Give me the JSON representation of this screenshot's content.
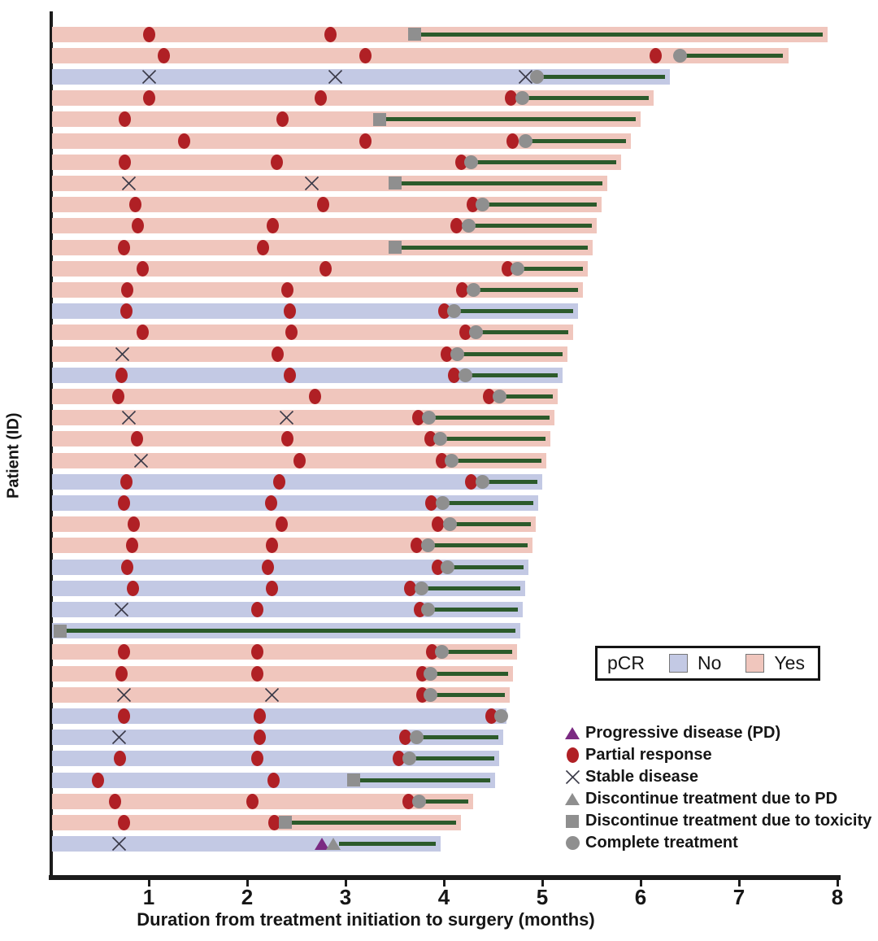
{
  "y_axis": {
    "label": "Patient (ID)"
  },
  "x_axis": {
    "label": "Duration from treatment initiation to surgery (months)",
    "ticks": [
      1,
      2,
      3,
      4,
      5,
      6,
      7,
      8
    ],
    "range": [
      0,
      8.4
    ]
  },
  "colors": {
    "pcr_yes": "#f0c6bd",
    "pcr_no": "#c3c9e4",
    "surgery_line": "#2c5a2b",
    "partial_response": "#b02025",
    "progressive_disease": "#7b2a82",
    "discontinue_gray": "#8f8f8f",
    "stable_x": "#3a3a48",
    "axis": "#1c1c1c"
  },
  "pcr_legend": {
    "title": "pCR",
    "items": [
      {
        "label": "No",
        "color_key": "pcr_no"
      },
      {
        "label": "Yes",
        "color_key": "pcr_yes"
      }
    ]
  },
  "marker_legend": [
    {
      "marker": "pd",
      "label": "Progressive disease (PD)"
    },
    {
      "marker": "pr",
      "label": "Partial response"
    },
    {
      "marker": "sd",
      "label": "Stable disease"
    },
    {
      "marker": "dpd",
      "label": "Discontinue treatment due to PD"
    },
    {
      "marker": "tox",
      "label": "Discontinue treatment due to toxicity"
    },
    {
      "marker": "ct",
      "label": "Complete treatment"
    }
  ],
  "chart_data": {
    "type": "swimmer-bar",
    "x_unit": "months",
    "xlim": [
      0,
      8
    ],
    "marker_codes": {
      "pr": "partial response (red circle)",
      "sd": "stable disease (x)",
      "pd": "progressive disease (purple triangle)",
      "ct": "complete treatment (gray circle)",
      "tox": "discontinue treatment due to toxicity (gray square)",
      "dpd": "discontinue treatment due to PD (gray triangle)"
    },
    "patients": [
      {
        "pcr": "Yes",
        "surgery": 7.9,
        "eot": {
          "t": 3.7,
          "marker": "tox"
        },
        "responses": [
          {
            "t": 1.0,
            "marker": "pr"
          },
          {
            "t": 2.85,
            "marker": "pr"
          }
        ]
      },
      {
        "pcr": "Yes",
        "surgery": 7.5,
        "eot": {
          "t": 6.4,
          "marker": "ct"
        },
        "responses": [
          {
            "t": 1.15,
            "marker": "pr"
          },
          {
            "t": 3.2,
            "marker": "pr"
          },
          {
            "t": 6.15,
            "marker": "pr"
          }
        ]
      },
      {
        "pcr": "No",
        "surgery": 6.3,
        "eot": {
          "t": 4.95,
          "marker": "ct"
        },
        "responses": [
          {
            "t": 1.0,
            "marker": "sd"
          },
          {
            "t": 2.9,
            "marker": "sd"
          },
          {
            "t": 4.83,
            "marker": "sd"
          }
        ]
      },
      {
        "pcr": "Yes",
        "surgery": 6.13,
        "eot": {
          "t": 4.8,
          "marker": "ct"
        },
        "responses": [
          {
            "t": 1.0,
            "marker": "pr"
          },
          {
            "t": 2.75,
            "marker": "pr"
          },
          {
            "t": 4.68,
            "marker": "pr"
          }
        ]
      },
      {
        "pcr": "Yes",
        "surgery": 6.0,
        "eot": {
          "t": 3.35,
          "marker": "tox"
        },
        "responses": [
          {
            "t": 0.76,
            "marker": "pr"
          },
          {
            "t": 2.36,
            "marker": "pr"
          }
        ]
      },
      {
        "pcr": "Yes",
        "surgery": 5.9,
        "eot": {
          "t": 4.83,
          "marker": "ct"
        },
        "responses": [
          {
            "t": 1.36,
            "marker": "pr"
          },
          {
            "t": 3.2,
            "marker": "pr"
          },
          {
            "t": 4.7,
            "marker": "pr"
          }
        ]
      },
      {
        "pcr": "Yes",
        "surgery": 5.8,
        "eot": {
          "t": 4.28,
          "marker": "ct"
        },
        "responses": [
          {
            "t": 0.76,
            "marker": "pr"
          },
          {
            "t": 2.3,
            "marker": "pr"
          },
          {
            "t": 4.18,
            "marker": "pr"
          }
        ]
      },
      {
        "pcr": "Yes",
        "surgery": 5.66,
        "eot": {
          "t": 3.5,
          "marker": "tox"
        },
        "responses": [
          {
            "t": 0.8,
            "marker": "sd"
          },
          {
            "t": 2.66,
            "marker": "sd"
          }
        ]
      },
      {
        "pcr": "Yes",
        "surgery": 5.6,
        "eot": {
          "t": 4.39,
          "marker": "ct"
        },
        "responses": [
          {
            "t": 0.86,
            "marker": "pr"
          },
          {
            "t": 2.77,
            "marker": "pr"
          },
          {
            "t": 4.29,
            "marker": "pr"
          }
        ]
      },
      {
        "pcr": "Yes",
        "surgery": 5.55,
        "eot": {
          "t": 4.25,
          "marker": "ct"
        },
        "responses": [
          {
            "t": 0.89,
            "marker": "pr"
          },
          {
            "t": 2.26,
            "marker": "pr"
          },
          {
            "t": 4.13,
            "marker": "pr"
          }
        ]
      },
      {
        "pcr": "Yes",
        "surgery": 5.51,
        "eot": {
          "t": 3.5,
          "marker": "tox"
        },
        "responses": [
          {
            "t": 0.75,
            "marker": "pr"
          },
          {
            "t": 2.16,
            "marker": "pr"
          }
        ]
      },
      {
        "pcr": "Yes",
        "surgery": 5.46,
        "eot": {
          "t": 4.75,
          "marker": "ct"
        },
        "responses": [
          {
            "t": 0.94,
            "marker": "pr"
          },
          {
            "t": 2.8,
            "marker": "pr"
          },
          {
            "t": 4.65,
            "marker": "pr"
          }
        ]
      },
      {
        "pcr": "Yes",
        "surgery": 5.41,
        "eot": {
          "t": 4.3,
          "marker": "ct"
        },
        "responses": [
          {
            "t": 0.78,
            "marker": "pr"
          },
          {
            "t": 2.41,
            "marker": "pr"
          },
          {
            "t": 4.19,
            "marker": "pr"
          }
        ]
      },
      {
        "pcr": "No",
        "surgery": 5.36,
        "eot": {
          "t": 4.1,
          "marker": "ct"
        },
        "responses": [
          {
            "t": 0.77,
            "marker": "pr"
          },
          {
            "t": 2.43,
            "marker": "pr"
          },
          {
            "t": 4.0,
            "marker": "pr"
          }
        ]
      },
      {
        "pcr": "Yes",
        "surgery": 5.31,
        "eot": {
          "t": 4.33,
          "marker": "ct"
        },
        "responses": [
          {
            "t": 0.94,
            "marker": "pr"
          },
          {
            "t": 2.45,
            "marker": "pr"
          },
          {
            "t": 4.22,
            "marker": "pr"
          }
        ]
      },
      {
        "pcr": "Yes",
        "surgery": 5.26,
        "eot": {
          "t": 4.14,
          "marker": "ct"
        },
        "responses": [
          {
            "t": 0.73,
            "marker": "sd"
          },
          {
            "t": 2.31,
            "marker": "pr"
          },
          {
            "t": 4.03,
            "marker": "pr"
          }
        ]
      },
      {
        "pcr": "No",
        "surgery": 5.21,
        "eot": {
          "t": 4.22,
          "marker": "ct"
        },
        "responses": [
          {
            "t": 0.72,
            "marker": "pr"
          },
          {
            "t": 2.43,
            "marker": "pr"
          },
          {
            "t": 4.1,
            "marker": "pr"
          }
        ]
      },
      {
        "pcr": "Yes",
        "surgery": 5.16,
        "eot": {
          "t": 4.57,
          "marker": "ct"
        },
        "responses": [
          {
            "t": 0.69,
            "marker": "pr"
          },
          {
            "t": 2.69,
            "marker": "pr"
          },
          {
            "t": 4.46,
            "marker": "pr"
          }
        ]
      },
      {
        "pcr": "Yes",
        "surgery": 5.12,
        "eot": {
          "t": 3.85,
          "marker": "ct"
        },
        "responses": [
          {
            "t": 0.8,
            "marker": "sd"
          },
          {
            "t": 2.4,
            "marker": "sd"
          },
          {
            "t": 3.74,
            "marker": "pr"
          }
        ]
      },
      {
        "pcr": "Yes",
        "surgery": 5.08,
        "eot": {
          "t": 3.96,
          "marker": "ct"
        },
        "responses": [
          {
            "t": 0.88,
            "marker": "pr"
          },
          {
            "t": 2.41,
            "marker": "pr"
          },
          {
            "t": 3.86,
            "marker": "pr"
          }
        ]
      },
      {
        "pcr": "Yes",
        "surgery": 5.04,
        "eot": {
          "t": 4.08,
          "marker": "ct"
        },
        "responses": [
          {
            "t": 0.92,
            "marker": "sd"
          },
          {
            "t": 2.53,
            "marker": "pr"
          },
          {
            "t": 3.98,
            "marker": "pr"
          }
        ]
      },
      {
        "pcr": "No",
        "surgery": 5.0,
        "eot": {
          "t": 4.39,
          "marker": "ct"
        },
        "responses": [
          {
            "t": 0.77,
            "marker": "pr"
          },
          {
            "t": 2.33,
            "marker": "pr"
          },
          {
            "t": 4.28,
            "marker": "pr"
          }
        ]
      },
      {
        "pcr": "No",
        "surgery": 4.96,
        "eot": {
          "t": 3.99,
          "marker": "ct"
        },
        "responses": [
          {
            "t": 0.75,
            "marker": "pr"
          },
          {
            "t": 2.24,
            "marker": "pr"
          },
          {
            "t": 3.87,
            "marker": "pr"
          }
        ]
      },
      {
        "pcr": "Yes",
        "surgery": 4.93,
        "eot": {
          "t": 4.06,
          "marker": "ct"
        },
        "responses": [
          {
            "t": 0.85,
            "marker": "pr"
          },
          {
            "t": 2.35,
            "marker": "pr"
          },
          {
            "t": 3.94,
            "marker": "pr"
          }
        ]
      },
      {
        "pcr": "Yes",
        "surgery": 4.9,
        "eot": {
          "t": 3.84,
          "marker": "ct"
        },
        "responses": [
          {
            "t": 0.83,
            "marker": "pr"
          },
          {
            "t": 2.25,
            "marker": "pr"
          },
          {
            "t": 3.72,
            "marker": "pr"
          }
        ]
      },
      {
        "pcr": "No",
        "surgery": 4.86,
        "eot": {
          "t": 4.04,
          "marker": "ct"
        },
        "responses": [
          {
            "t": 0.78,
            "marker": "pr"
          },
          {
            "t": 2.21,
            "marker": "pr"
          },
          {
            "t": 3.94,
            "marker": "pr"
          }
        ]
      },
      {
        "pcr": "No",
        "surgery": 4.83,
        "eot": {
          "t": 3.77,
          "marker": "ct"
        },
        "responses": [
          {
            "t": 0.84,
            "marker": "pr"
          },
          {
            "t": 2.25,
            "marker": "pr"
          },
          {
            "t": 3.66,
            "marker": "pr"
          }
        ]
      },
      {
        "pcr": "No",
        "surgery": 4.8,
        "eot": {
          "t": 3.84,
          "marker": "ct"
        },
        "responses": [
          {
            "t": 0.72,
            "marker": "sd"
          },
          {
            "t": 2.1,
            "marker": "pr"
          },
          {
            "t": 3.76,
            "marker": "pr"
          }
        ]
      },
      {
        "pcr": "No",
        "surgery": 4.78,
        "eot": {
          "t": 0.1,
          "marker": "tox"
        },
        "responses": []
      },
      {
        "pcr": "Yes",
        "surgery": 4.74,
        "eot": {
          "t": 3.98,
          "marker": "ct"
        },
        "responses": [
          {
            "t": 0.75,
            "marker": "pr"
          },
          {
            "t": 2.1,
            "marker": "pr"
          },
          {
            "t": 3.88,
            "marker": "pr"
          }
        ]
      },
      {
        "pcr": "Yes",
        "surgery": 4.7,
        "eot": {
          "t": 3.86,
          "marker": "ct"
        },
        "responses": [
          {
            "t": 0.72,
            "marker": "pr"
          },
          {
            "t": 2.1,
            "marker": "pr"
          },
          {
            "t": 3.78,
            "marker": "pr"
          }
        ]
      },
      {
        "pcr": "Yes",
        "surgery": 4.67,
        "eot": {
          "t": 3.86,
          "marker": "ct"
        },
        "responses": [
          {
            "t": 0.75,
            "marker": "sd"
          },
          {
            "t": 2.25,
            "marker": "sd"
          },
          {
            "t": 3.78,
            "marker": "pr"
          }
        ]
      },
      {
        "pcr": "No",
        "surgery": 4.64,
        "eot": {
          "t": 4.58,
          "marker": "ct"
        },
        "responses": [
          {
            "t": 0.75,
            "marker": "pr"
          },
          {
            "t": 2.13,
            "marker": "pr"
          },
          {
            "t": 4.48,
            "marker": "pr"
          }
        ]
      },
      {
        "pcr": "No",
        "surgery": 4.6,
        "eot": {
          "t": 3.72,
          "marker": "ct"
        },
        "responses": [
          {
            "t": 0.7,
            "marker": "sd"
          },
          {
            "t": 2.13,
            "marker": "pr"
          },
          {
            "t": 3.61,
            "marker": "pr"
          }
        ]
      },
      {
        "pcr": "No",
        "surgery": 4.56,
        "eot": {
          "t": 3.65,
          "marker": "ct"
        },
        "responses": [
          {
            "t": 0.71,
            "marker": "pr"
          },
          {
            "t": 2.1,
            "marker": "pr"
          },
          {
            "t": 3.54,
            "marker": "pr"
          }
        ]
      },
      {
        "pcr": "No",
        "surgery": 4.52,
        "eot": {
          "t": 3.08,
          "marker": "tox"
        },
        "responses": [
          {
            "t": 0.48,
            "marker": "pr"
          },
          {
            "t": 2.27,
            "marker": "pr"
          }
        ]
      },
      {
        "pcr": "Yes",
        "surgery": 4.3,
        "eot": {
          "t": 3.75,
          "marker": "ct"
        },
        "responses": [
          {
            "t": 0.66,
            "marker": "pr"
          },
          {
            "t": 2.05,
            "marker": "pr"
          },
          {
            "t": 3.64,
            "marker": "pr"
          }
        ]
      },
      {
        "pcr": "Yes",
        "surgery": 4.17,
        "eot": {
          "t": 2.39,
          "marker": "tox"
        },
        "responses": [
          {
            "t": 0.75,
            "marker": "pr"
          },
          {
            "t": 2.28,
            "marker": "pr"
          }
        ]
      },
      {
        "pcr": "No",
        "surgery": 3.97,
        "eot": {
          "t": 2.88,
          "marker": "dpd"
        },
        "responses": [
          {
            "t": 0.7,
            "marker": "sd"
          },
          {
            "t": 2.76,
            "marker": "pd"
          }
        ]
      }
    ]
  }
}
